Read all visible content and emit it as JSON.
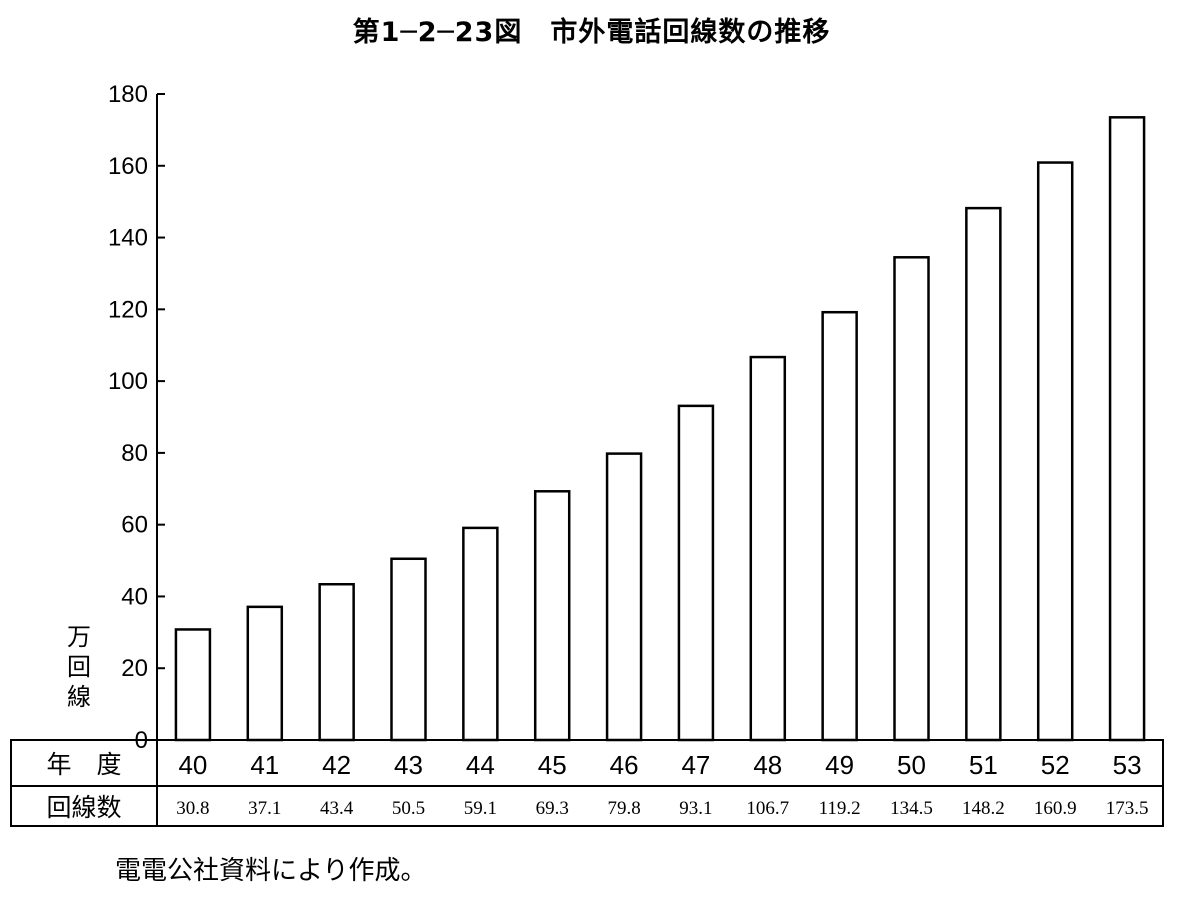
{
  "title": "第1─2─23図　市外電話回線数の推移",
  "source_note": "電電公社資料により作成。",
  "unit_label": [
    "万",
    "回",
    "線"
  ],
  "table": {
    "row1_header": "年　度",
    "row2_header": "回線数"
  },
  "chart_data": {
    "type": "bar",
    "title": "第1─2─23図　市外電話回線数の推移",
    "ylabel": "万回線",
    "xlabel": "年度",
    "ylim": [
      0,
      180
    ],
    "yticks": [
      0,
      20,
      40,
      60,
      80,
      100,
      120,
      140,
      160,
      180
    ],
    "grid": false,
    "categories": [
      "40",
      "41",
      "42",
      "43",
      "44",
      "45",
      "46",
      "47",
      "48",
      "49",
      "50",
      "51",
      "52",
      "53"
    ],
    "value_labels": [
      "30.8",
      "37.1",
      "43.4",
      "50.5",
      "59.1",
      "69.3",
      "79.8",
      "93.1",
      "106.7",
      "119.2",
      "134.5",
      "148.2",
      "160.9",
      "173.5"
    ],
    "values": [
      30.8,
      37.1,
      43.4,
      50.5,
      59.1,
      69.3,
      79.8,
      93.1,
      106.7,
      119.2,
      134.5,
      148.2,
      160.9,
      173.5
    ]
  }
}
